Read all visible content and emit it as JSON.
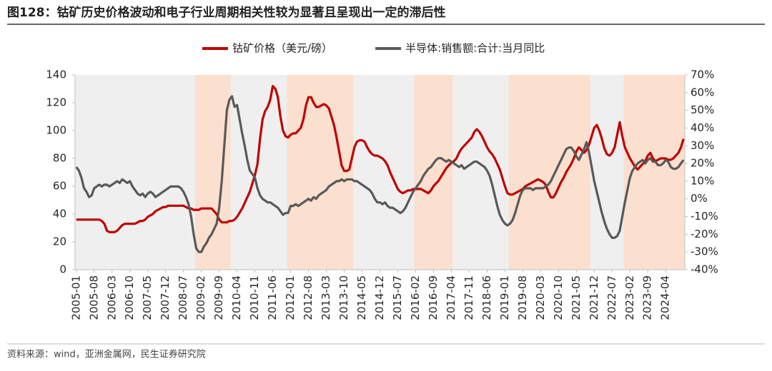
{
  "chart_data": {
    "type": "line",
    "title": "图128：钴矿历史价格波动和电子行业周期相关性较为显著且呈现出一定的滞后性",
    "source": "资料来源：wind，亚洲金属网，民生证券研究院",
    "categories": [
      "2005-01",
      null,
      null,
      null,
      null,
      null,
      null,
      "2005-08",
      null,
      null,
      null,
      null,
      null,
      null,
      "2006-03",
      null,
      null,
      null,
      null,
      null,
      null,
      "2006-10",
      null,
      null,
      null,
      null,
      null,
      null,
      "2007-05",
      null,
      null,
      null,
      null,
      null,
      null,
      "2007-12",
      null,
      null,
      null,
      null,
      null,
      null,
      "2008-07",
      null,
      null,
      null,
      null,
      null,
      null,
      "2009-02",
      null,
      null,
      null,
      null,
      null,
      null,
      "2009-09",
      null,
      null,
      null,
      null,
      null,
      null,
      "2010-04",
      null,
      null,
      null,
      null,
      null,
      null,
      "2010-11",
      null,
      null,
      null,
      null,
      null,
      null,
      "2011-06",
      null,
      null,
      null,
      null,
      null,
      null,
      "2012-01",
      null,
      null,
      null,
      null,
      null,
      null,
      "2012-08",
      null,
      null,
      null,
      null,
      null,
      null,
      "2013-03",
      null,
      null,
      null,
      null,
      null,
      null,
      "2013-10",
      null,
      null,
      null,
      null,
      null,
      null,
      "2014-05",
      null,
      null,
      null,
      null,
      null,
      null,
      "2014-12",
      null,
      null,
      null,
      null,
      null,
      null,
      "2015-07",
      null,
      null,
      null,
      null,
      null,
      null,
      "2016-02",
      null,
      null,
      null,
      null,
      null,
      null,
      "2016-09",
      null,
      null,
      null,
      null,
      null,
      null,
      "2017-04",
      null,
      null,
      null,
      null,
      null,
      null,
      "2017-11",
      null,
      null,
      null,
      null,
      null,
      null,
      "2018-06",
      null,
      null,
      null,
      null,
      null,
      null,
      "2019-01",
      null,
      null,
      null,
      null,
      null,
      null,
      "2019-08",
      null,
      null,
      null,
      null,
      null,
      null,
      "2020-03",
      null,
      null,
      null,
      null,
      null,
      null,
      "2020-10",
      null,
      null,
      null,
      null,
      null,
      null,
      "2021-05",
      null,
      null,
      null,
      null,
      null,
      null,
      "2021-12",
      null,
      null,
      null,
      null,
      null,
      null,
      "2022-07",
      null,
      null,
      null,
      null,
      null,
      null,
      "2023-02",
      null,
      null,
      null,
      null,
      null,
      null,
      "2023-09",
      null,
      null,
      null,
      null,
      null,
      null,
      "2024-04",
      null,
      null,
      null,
      null,
      null,
      null,
      null
    ],
    "series": [
      {
        "name": "钴矿价格（美元/磅）",
        "color": "#c00000",
        "values": [
          36,
          36,
          36,
          36,
          36,
          36,
          36,
          36,
          36,
          36,
          35,
          33,
          28,
          27,
          27,
          27,
          28,
          30,
          32,
          33,
          33,
          33,
          33,
          33,
          34,
          35,
          35,
          36,
          38,
          39,
          40,
          42,
          43,
          44,
          45,
          45,
          46,
          46,
          46,
          46,
          46,
          46,
          46,
          45,
          44,
          44,
          43,
          43,
          43,
          44,
          44,
          44,
          44,
          44,
          42,
          40,
          36,
          34,
          34,
          34,
          35,
          35,
          36,
          38,
          41,
          44,
          48,
          52,
          56,
          62,
          68,
          76,
          94,
          108,
          114,
          117,
          122,
          132,
          130,
          124,
          110,
          100,
          96,
          95,
          97,
          98,
          98,
          100,
          102,
          108,
          118,
          124,
          124,
          120,
          117,
          117,
          118,
          119,
          118,
          116,
          110,
          104,
          95,
          85,
          75,
          71,
          71,
          72,
          80,
          88,
          92,
          93,
          93,
          92,
          88,
          85,
          83,
          82,
          82,
          81,
          80,
          78,
          75,
          70,
          66,
          62,
          58,
          56,
          55,
          56,
          57,
          57,
          58,
          58,
          58,
          58,
          57,
          56,
          55,
          57,
          60,
          62,
          64,
          67,
          70,
          73,
          75,
          77,
          78,
          80,
          84,
          87,
          89,
          91,
          93,
          95,
          99,
          101,
          99,
          96,
          92,
          88,
          85,
          83,
          80,
          76,
          72,
          66,
          60,
          55,
          54,
          54,
          55,
          56,
          57,
          58,
          60,
          61,
          62,
          63,
          64,
          65,
          64,
          63,
          61,
          56,
          52,
          52,
          55,
          59,
          63,
          66,
          70,
          73,
          76,
          80,
          85,
          88,
          86,
          84,
          86,
          90,
          96,
          102,
          104,
          100,
          94,
          87,
          83,
          82,
          84,
          88,
          97,
          106,
          96,
          88,
          84,
          80,
          77,
          74,
          72,
          74,
          76,
          78,
          82,
          84,
          80,
          78,
          79,
          80,
          80,
          80,
          79,
          79,
          80,
          82,
          84,
          88,
          94
        ]
      },
      {
        "name": "半导体:销售额:合计:当月同比",
        "color": "#595959",
        "axis": "y2",
        "values": [
          18,
          16,
          12,
          6,
          4,
          1,
          2,
          6,
          7,
          8,
          7,
          8,
          8,
          7,
          8,
          9,
          10,
          9,
          11,
          10,
          9,
          10,
          7,
          5,
          3,
          2,
          3,
          1,
          3,
          4,
          3,
          1,
          2,
          3,
          4,
          5,
          6,
          7,
          7,
          7,
          7,
          6,
          4,
          1,
          -3,
          -10,
          -20,
          -28,
          -30,
          -30,
          -27,
          -25,
          -22,
          -20,
          -17,
          -14,
          -5,
          10,
          30,
          50,
          56,
          58,
          52,
          53,
          45,
          37,
          30,
          22,
          16,
          14,
          12,
          6,
          2,
          0,
          -1,
          -2,
          -2,
          -3,
          -4,
          -5,
          -7,
          -9,
          -8,
          -8,
          -4,
          -4,
          -3,
          -4,
          -3,
          -2,
          -1,
          0,
          -1,
          1,
          0,
          2,
          3,
          4,
          5,
          7,
          8,
          9,
          10,
          10,
          11,
          10,
          11,
          11,
          11,
          10,
          10,
          9,
          8,
          7,
          6,
          5,
          3,
          0,
          -2,
          -2,
          -3,
          -2,
          -4,
          -5,
          -5,
          -6,
          -7,
          -8,
          -7,
          -5,
          -2,
          1,
          4,
          6,
          8,
          10,
          13,
          15,
          17,
          18,
          20,
          22,
          23,
          23,
          22,
          21,
          22,
          21,
          20,
          19,
          18,
          19,
          17,
          18,
          19,
          20,
          21,
          21,
          20,
          19,
          18,
          16,
          13,
          8,
          2,
          -4,
          -9,
          -12,
          -14,
          -15,
          -14,
          -12,
          -8,
          -3,
          2,
          5,
          6,
          6,
          6,
          5,
          6,
          6,
          6,
          6,
          7,
          8,
          10,
          13,
          16,
          19,
          22,
          25,
          28,
          29,
          29,
          27,
          24,
          22,
          25,
          28,
          32,
          26,
          18,
          10,
          4,
          -2,
          -8,
          -13,
          -17,
          -20,
          -22,
          -22,
          -21,
          -18,
          -10,
          -2,
          5,
          12,
          16,
          18,
          20,
          21,
          22,
          20,
          22,
          23,
          21,
          21,
          19,
          19,
          20,
          22,
          21,
          18,
          17,
          17,
          18,
          20,
          22
        ]
      }
    ],
    "highlight_periods": [
      [
        47,
        60
      ],
      [
        83,
        108
      ],
      [
        133,
        147
      ],
      [
        170,
        201
      ],
      [
        215,
        238
      ]
    ],
    "highlight_color": "#fbe0cf",
    "background_color": "#efefef",
    "ylim": [
      0,
      140
    ],
    "yticks": [
      0,
      20,
      40,
      60,
      80,
      100,
      120,
      140
    ],
    "y2lim": [
      -40,
      70
    ],
    "y2ticks": [
      {
        "value": -40,
        "label": "-40%"
      },
      {
        "value": -30,
        "label": "-30%"
      },
      {
        "value": -20,
        "label": "-20%"
      },
      {
        "value": -10,
        "label": "-10%"
      },
      {
        "value": 0,
        "label": "0%"
      },
      {
        "value": 10,
        "label": "10%"
      },
      {
        "value": 20,
        "label": "20%"
      },
      {
        "value": 30,
        "label": "30%"
      },
      {
        "value": 40,
        "label": "40%"
      },
      {
        "value": 50,
        "label": "50%"
      },
      {
        "value": 60,
        "label": "60%"
      },
      {
        "value": 70,
        "label": "70%"
      }
    ],
    "legend": "top"
  }
}
